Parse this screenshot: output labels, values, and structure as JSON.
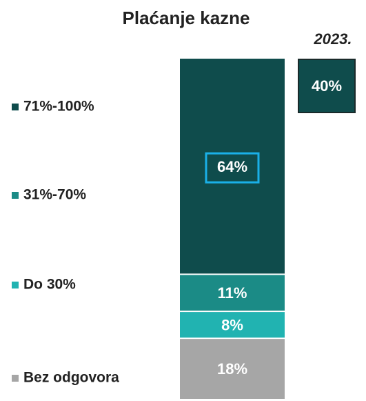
{
  "chart_data": {
    "type": "stacked_bar",
    "title": "Plaćanje kazne",
    "series": [
      {
        "name": "71%-100%",
        "color": "#0f4c4c",
        "values": [
          64
        ],
        "value_labels": [
          "64%"
        ]
      },
      {
        "name": "31%-70%",
        "color": "#1b8b86",
        "values": [
          11
        ],
        "value_labels": [
          "11%"
        ]
      },
      {
        "name": "Do 30%",
        "color": "#21b3b1",
        "values": [
          8
        ],
        "value_labels": [
          "8%"
        ]
      },
      {
        "name": "Bez odgovora",
        "color": "#a6a6a6",
        "values": [
          18
        ],
        "value_labels": [
          "18%"
        ]
      }
    ],
    "comparison": {
      "label": "2023.",
      "value": 40,
      "value_label": "40%",
      "color": "#0f4c4c"
    }
  }
}
